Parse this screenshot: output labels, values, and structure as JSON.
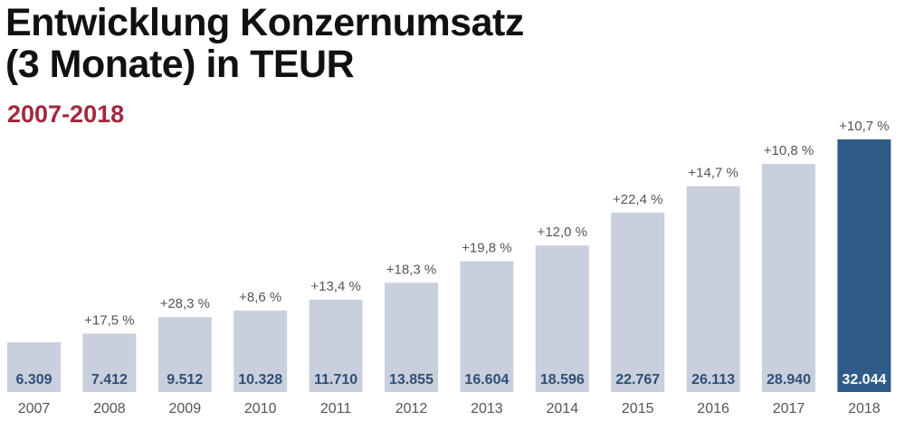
{
  "chart_data": {
    "type": "bar",
    "title": [
      "Entwicklung Konzernumsatz",
      "(3 Monate) in TEUR"
    ],
    "subtitle": "2007-2018",
    "categories": [
      "2007",
      "2008",
      "2009",
      "2010",
      "2011",
      "2012",
      "2013",
      "2014",
      "2015",
      "2016",
      "2017",
      "2018"
    ],
    "values": [
      6309,
      7412,
      9512,
      10328,
      11710,
      13855,
      16604,
      18596,
      22767,
      26113,
      28940,
      32044
    ],
    "value_labels": [
      "6.309",
      "7.412",
      "9.512",
      "10.328",
      "11.710",
      "13.855",
      "16.604",
      "18.596",
      "22.767",
      "26.113",
      "28.940",
      "32.044"
    ],
    "growth_labels": [
      "",
      "+17,5 %",
      "+28,3 %",
      "+8,6 %",
      "+13,4 %",
      "+18,3 %",
      "+19,8 %",
      "+12,0 %",
      "+22,4 %",
      "+14,7 %",
      "+10,8 %",
      "+10,7 %"
    ],
    "highlight_index": 11,
    "colors": {
      "bar": "#c9cfdc",
      "highlight": "#2e5b87",
      "value_text": "#2e4f78",
      "highlight_text": "#ffffff",
      "subtitle": "#a3283f",
      "label": "#555555"
    },
    "grid": false,
    "xlabel": "",
    "ylabel": ""
  }
}
